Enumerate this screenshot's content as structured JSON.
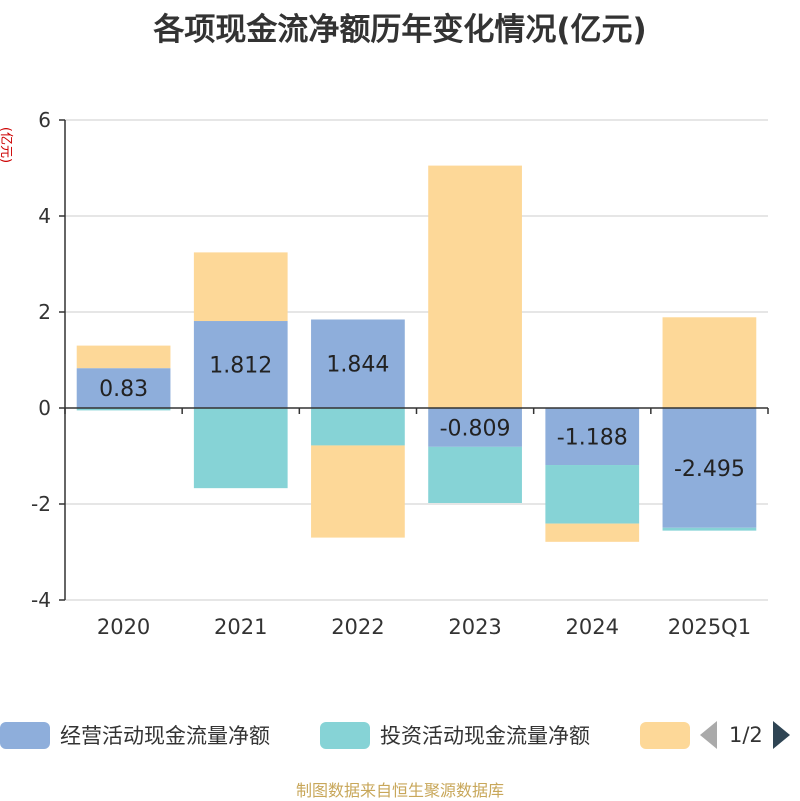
{
  "chart_data": {
    "type": "bar",
    "stacked": true,
    "title": "各项现金流净额历年变化情况(亿元)",
    "ylabel": "(亿元)",
    "xlabel": "",
    "ylim": [
      -4,
      6
    ],
    "yticks": [
      -4,
      -2,
      0,
      2,
      4,
      6
    ],
    "categories": [
      "2020",
      "2021",
      "2022",
      "2023",
      "2024",
      "2025Q1"
    ],
    "series": [
      {
        "name": "经营活动现金流量净额",
        "color": "#8eaedb",
        "labeled": true,
        "values": [
          0.83,
          1.812,
          1.844,
          -0.809,
          -1.188,
          -2.495
        ]
      },
      {
        "name": "投资活动现金流量净额",
        "color": "#86d3d6",
        "labeled": false,
        "values": [
          -0.05,
          -1.67,
          -0.78,
          -1.17,
          -1.22,
          -0.06
        ]
      },
      {
        "name": "",
        "color": "#fdd898",
        "labeled": false,
        "values": [
          0.47,
          1.43,
          -1.92,
          5.05,
          -0.38,
          1.89
        ]
      }
    ],
    "data_labels": [
      "0.83",
      "1.812",
      "1.844",
      "-0.809",
      "-1.188",
      "-2.495"
    ]
  },
  "legend": {
    "items": [
      {
        "label": "经营活动现金流量净额",
        "color": "#8eaedb"
      },
      {
        "label": "投资活动现金流量净额",
        "color": "#86d3d6"
      },
      {
        "label": "",
        "color": "#fdd898"
      }
    ],
    "page_text": "1/2"
  },
  "footer": "制图数据来自恒生聚源数据库"
}
